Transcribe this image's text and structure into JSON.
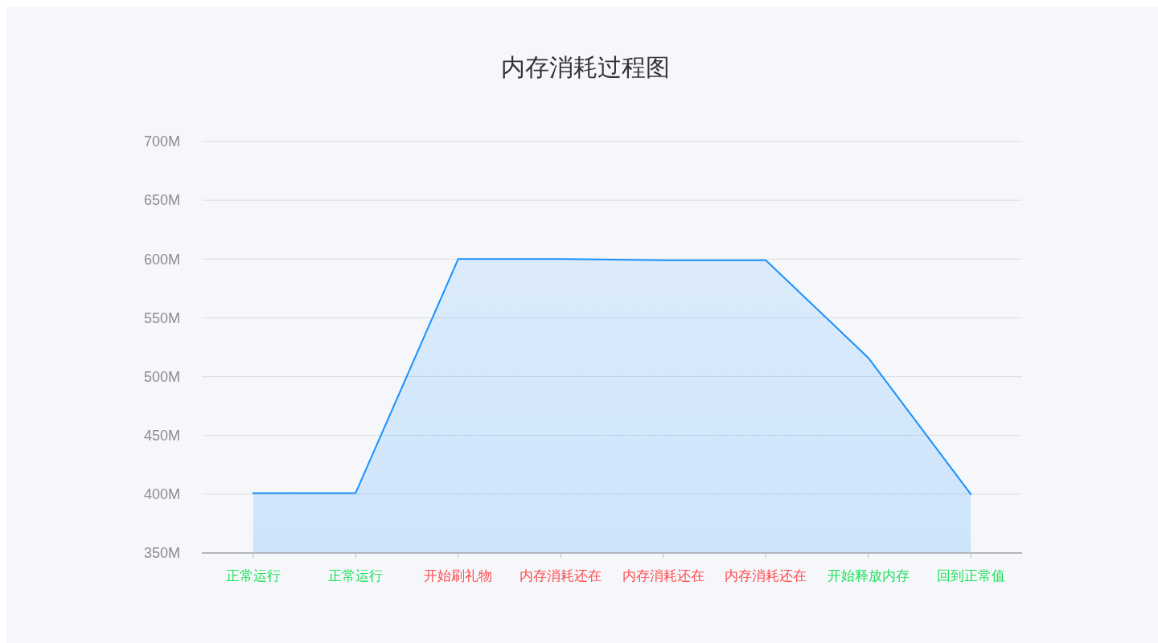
{
  "chart_data": {
    "type": "area",
    "title": "内存消耗过程图",
    "categories": [
      "正常运行",
      "正常运行",
      "开始刷礼物",
      "内存消耗还在",
      "内存消耗还在",
      "内存消耗还在",
      "开始释放内存",
      "回到正常值"
    ],
    "values": [
      401,
      401,
      600,
      600,
      599,
      599,
      516,
      400
    ],
    "color": "#1890ff",
    "colors": [
      "#22e05a",
      "#22e05a",
      "#ff4d4f",
      "#ff4d4f",
      "#ff4d4f",
      "#ff4d4f",
      "#22e05a",
      "#22e05a"
    ],
    "ylim": [
      350,
      700
    ],
    "yticks": [
      {
        "value": 350,
        "label": "350M"
      },
      {
        "value": 400,
        "label": "400M"
      },
      {
        "value": 450,
        "label": "450M"
      },
      {
        "value": 500,
        "label": "500M"
      },
      {
        "value": 550,
        "label": "550M"
      },
      {
        "value": 600,
        "label": "600M"
      },
      {
        "value": 650,
        "label": "650M"
      },
      {
        "value": 700,
        "label": "700M"
      }
    ],
    "grid": "y"
  }
}
